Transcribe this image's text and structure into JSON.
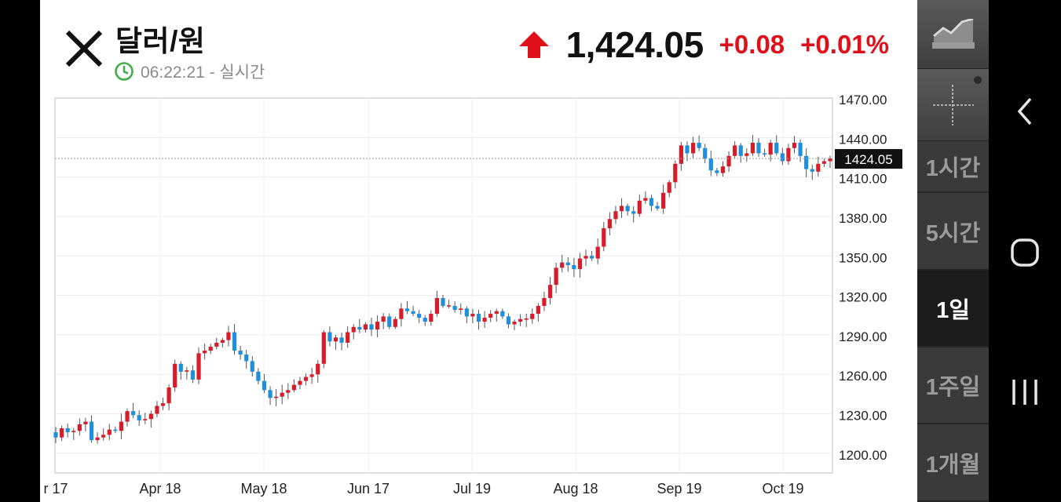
{
  "header": {
    "title": "달러/원",
    "time": "06:22:21",
    "mode": "실시간",
    "time_separator": " - "
  },
  "quote": {
    "last": "1,424.05",
    "change": "+0.08",
    "change_pct": "+0.01%",
    "direction": "up",
    "up_color": "#e0101a"
  },
  "chart": {
    "y_ticks": [
      "1470.00",
      "1440.00",
      "1410.00",
      "1380.00",
      "1350.00",
      "1320.00",
      "1290.00",
      "1260.00",
      "1230.00",
      "1200.00"
    ],
    "x_ticks": [
      "r 17",
      "Apr 18",
      "May 18",
      "Jun 17",
      "Jul 19",
      "Aug 18",
      "Sep 19",
      "Oct 19"
    ],
    "current_label": "1424.05",
    "up_color": "#d81c2a",
    "down_color": "#1e8fdc"
  },
  "chart_data": {
    "type": "candlestick",
    "title": "달러/원",
    "interval": "1일",
    "ylim": [
      1185,
      1470
    ],
    "last_price": 1424.05,
    "x_labels": [
      "r 17",
      "Apr 18",
      "May 18",
      "Jun 17",
      "Jul 19",
      "Aug 18",
      "Sep 19",
      "Oct 19"
    ],
    "close": [
      1212,
      1219,
      1216,
      1217,
      1222,
      1224,
      1210,
      1212,
      1214,
      1218,
      1217,
      1224,
      1232,
      1229,
      1225,
      1226,
      1230,
      1236,
      1238,
      1250,
      1268,
      1262,
      1263,
      1256,
      1276,
      1278,
      1281,
      1284,
      1286,
      1292,
      1278,
      1275,
      1270,
      1262,
      1255,
      1248,
      1242,
      1243,
      1246,
      1248,
      1252,
      1255,
      1258,
      1260,
      1268,
      1292,
      1285,
      1288,
      1284,
      1292,
      1296,
      1294,
      1298,
      1294,
      1300,
      1304,
      1296,
      1302,
      1310,
      1308,
      1306,
      1303,
      1300,
      1306,
      1318,
      1312,
      1312,
      1309,
      1310,
      1304,
      1306,
      1300,
      1303,
      1306,
      1308,
      1304,
      1298,
      1300,
      1302,
      1302,
      1306,
      1312,
      1318,
      1328,
      1341,
      1345,
      1343,
      1340,
      1348,
      1350,
      1348,
      1357,
      1371,
      1378,
      1384,
      1388,
      1384,
      1382,
      1392,
      1394,
      1388,
      1386,
      1398,
      1406,
      1420,
      1434,
      1428,
      1436,
      1432,
      1424,
      1415,
      1413,
      1418,
      1426,
      1434,
      1426,
      1428,
      1436,
      1428,
      1427,
      1436,
      1428,
      1422,
      1432,
      1436,
      1426,
      1416,
      1414,
      1420,
      1422,
      1424.05
    ]
  },
  "right_panel": {
    "tools": [
      {
        "icon": "chart-type-icon"
      },
      {
        "icon": "crosshair-icon"
      }
    ],
    "periods": [
      "1시간",
      "5시간",
      "1일",
      "1주일",
      "1개월"
    ],
    "active_period": "1일"
  },
  "nav": {
    "icons": [
      "back-icon",
      "home-icon",
      "recent-apps-icon"
    ]
  }
}
